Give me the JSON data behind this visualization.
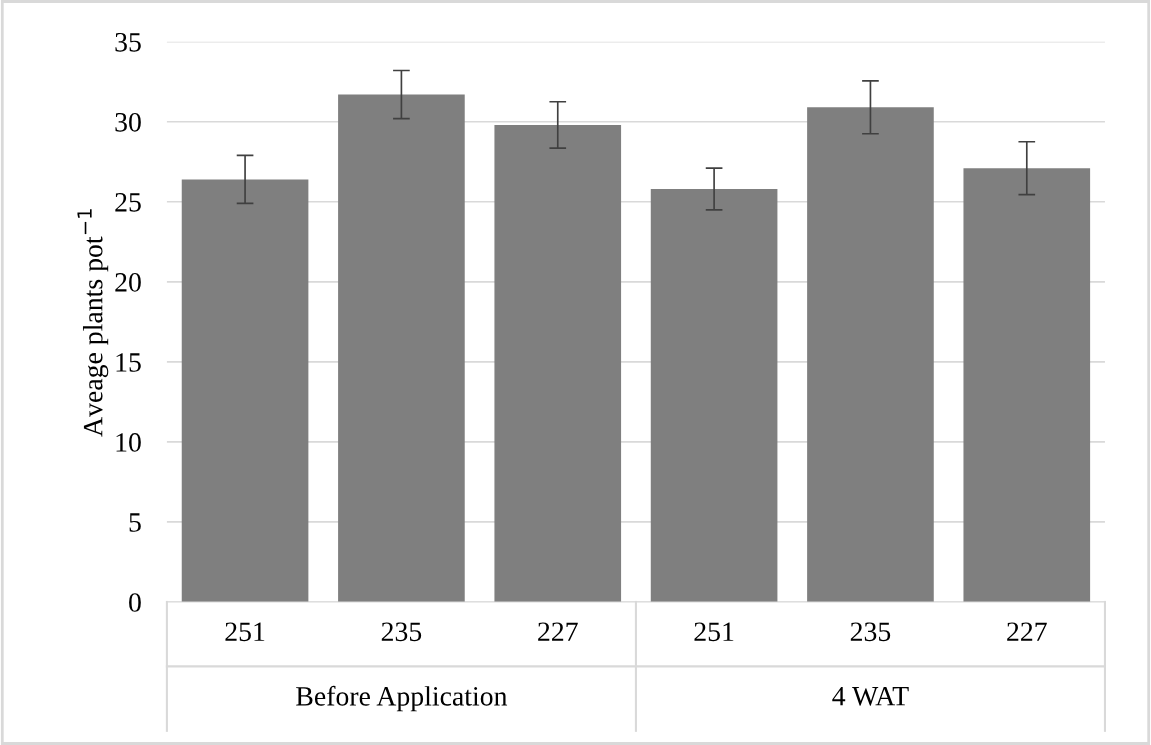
{
  "chart_data": {
    "type": "bar",
    "ylabel": "Aveage plants pot$^{−1}$",
    "categories": [
      "251",
      "235",
      "227",
      "251",
      "235",
      "227"
    ],
    "values": [
      26.4,
      31.7,
      29.8,
      25.8,
      30.9,
      27.1
    ],
    "errors": [
      1.5,
      1.5,
      1.45,
      1.3,
      1.65,
      1.65
    ],
    "color": "#7f7f7f",
    "ylim": [
      0,
      35
    ],
    "yticks": [
      0,
      5,
      10,
      15,
      20,
      25,
      30,
      35
    ],
    "grid": "y",
    "annotations": [
      "Before Application",
      "4 WAT"
    ]
  }
}
